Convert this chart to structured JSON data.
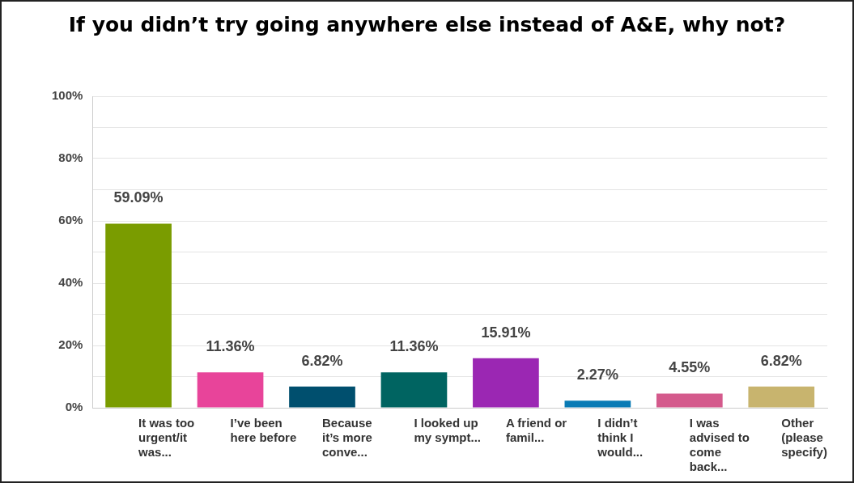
{
  "chart_data": {
    "type": "bar",
    "title": "If you didn’t try going anywhere else instead of A&E, why not?",
    "categories": [
      "It was too urgent/it was...",
      "I’ve been here before",
      "Because it’s more conve...",
      "I looked up my sympt...",
      "A friend or famil...",
      "I didn’t think I would...",
      "I was advised to come back...",
      "Other (please specify)"
    ],
    "values": [
      59.09,
      11.36,
      6.82,
      11.36,
      15.91,
      2.27,
      4.55,
      6.82
    ],
    "value_labels": [
      "59.09%",
      "11.36%",
      "6.82%",
      "11.36%",
      "15.91%",
      "2.27%",
      "4.55%",
      "6.82%"
    ],
    "colors": [
      "#7a9c00",
      "#e8449a",
      "#004f6e",
      "#006461",
      "#9b27b3",
      "#0a7bb5",
      "#d45a8c",
      "#c8b46e"
    ],
    "ylim": [
      0,
      100
    ],
    "yticks": [
      {
        "value": 0,
        "label": "0%"
      },
      {
        "value": 10,
        "label": null
      },
      {
        "value": 20,
        "label": "20%"
      },
      {
        "value": 30,
        "label": null
      },
      {
        "value": 40,
        "label": "40%"
      },
      {
        "value": 50,
        "label": null
      },
      {
        "value": 60,
        "label": "60%"
      },
      {
        "value": 70,
        "label": null
      },
      {
        "value": 80,
        "label": "80%"
      },
      {
        "value": 90,
        "label": null
      },
      {
        "value": 100,
        "label": "100%"
      }
    ],
    "grid": true
  }
}
